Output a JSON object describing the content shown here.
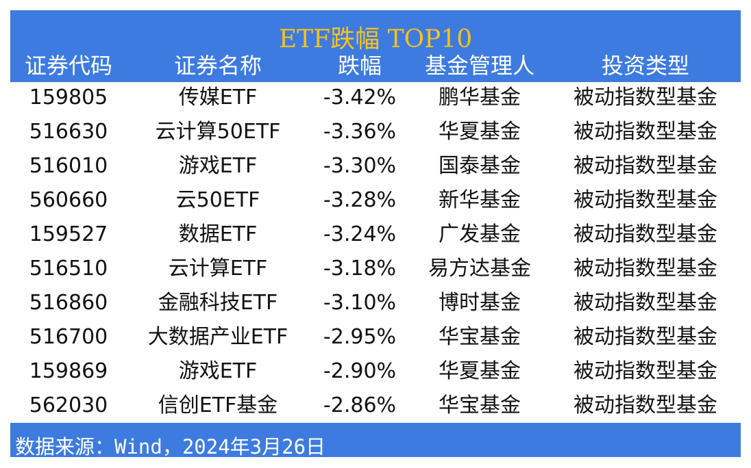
{
  "header": {
    "title": "ETF跌幅 TOP10",
    "columns": [
      "证券代码",
      "证券名称",
      "跌幅",
      "基金管理人",
      "投资类型"
    ]
  },
  "table": {
    "rows": [
      [
        "159805",
        "传媒ETF",
        "-3.42%",
        "鹏华基金",
        "被动指数型基金"
      ],
      [
        "516630",
        "云计算50ETF",
        "-3.36%",
        "华夏基金",
        "被动指数型基金"
      ],
      [
        "516010",
        "游戏ETF",
        "-3.30%",
        "国泰基金",
        "被动指数型基金"
      ],
      [
        "560660",
        "云50ETF",
        "-3.28%",
        "新华基金",
        "被动指数型基金"
      ],
      [
        "159527",
        "数据ETF",
        "-3.24%",
        "广发基金",
        "被动指数型基金"
      ],
      [
        "516510",
        "云计算ETF",
        "-3.18%",
        "易方达基金",
        "被动指数型基金"
      ],
      [
        "516860",
        "金融科技ETF",
        "-3.10%",
        "博时基金",
        "被动指数型基金"
      ],
      [
        "516700",
        "大数据产业ETF",
        "-2.95%",
        "华宝基金",
        "被动指数型基金"
      ],
      [
        "159869",
        "游戏ETF",
        "-2.90%",
        "华夏基金",
        "被动指数型基金"
      ],
      [
        "562030",
        "信创ETF基金",
        "-2.86%",
        "华宝基金",
        "被动指数型基金"
      ]
    ]
  },
  "footer": {
    "source": "数据来源：Wind，2024年3月26日"
  }
}
